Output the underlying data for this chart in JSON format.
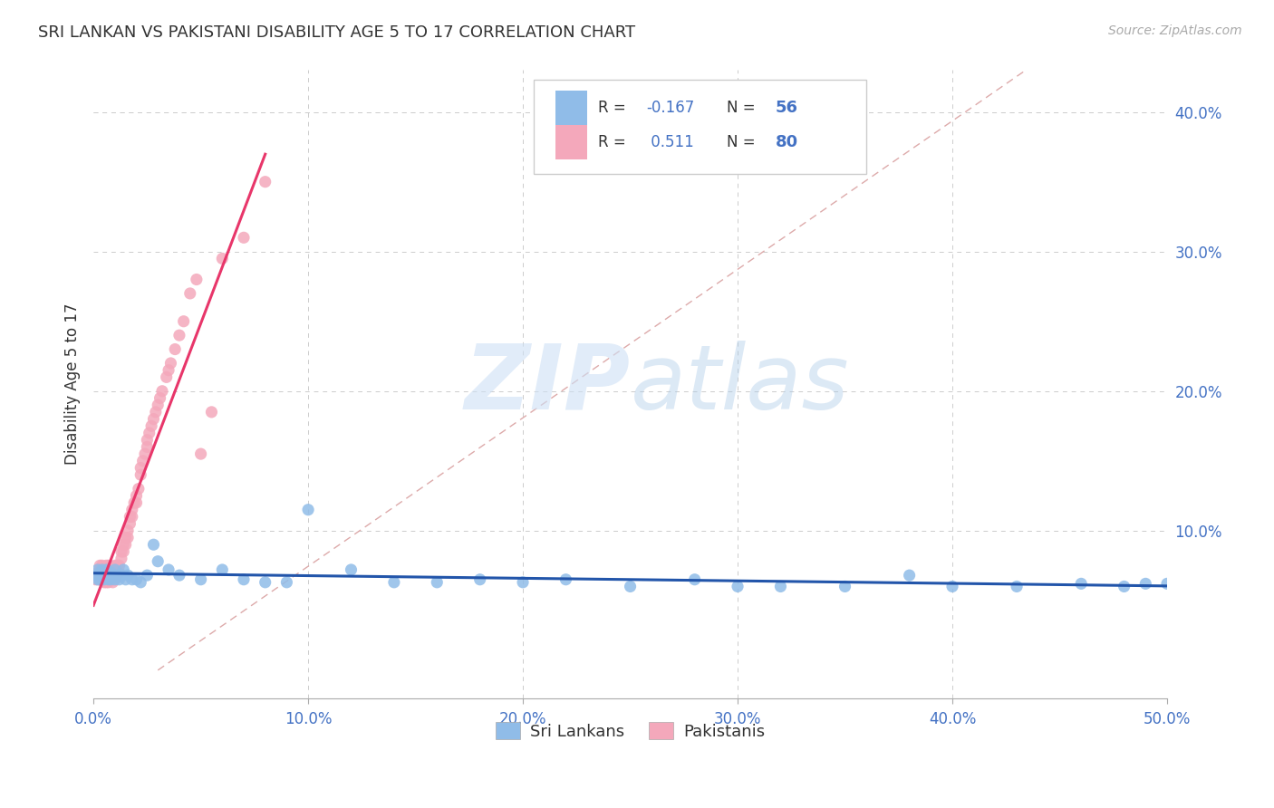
{
  "title": "SRI LANKAN VS PAKISTANI DISABILITY AGE 5 TO 17 CORRELATION CHART",
  "source": "Source: ZipAtlas.com",
  "ylabel": "Disability Age 5 to 17",
  "xlim": [
    0.0,
    0.5
  ],
  "ylim": [
    -0.02,
    0.43
  ],
  "xticks": [
    0.0,
    0.1,
    0.2,
    0.3,
    0.4,
    0.5
  ],
  "xticklabels": [
    "0.0%",
    "10.0%",
    "20.0%",
    "30.0%",
    "40.0%",
    "50.0%"
  ],
  "yticks_right": [
    0.1,
    0.2,
    0.3,
    0.4
  ],
  "yticklabels_right": [
    "10.0%",
    "20.0%",
    "30.0%",
    "40.0%"
  ],
  "sri_lankan_color": "#90bce8",
  "pakistani_color": "#f4a8bb",
  "sri_lankan_R": -0.167,
  "sri_lankan_N": 56,
  "pakistani_R": 0.511,
  "pakistani_N": 80,
  "legend_label_1": "Sri Lankans",
  "legend_label_2": "Pakistanis",
  "background_color": "#ffffff",
  "grid_color": "#cccccc",
  "axis_label_color": "#4472c4",
  "sri_lankan_line_color": "#2255aa",
  "pakistani_line_color": "#e8366a",
  "diagonal_line_color": "#ddaaaa",
  "sri_lankan_x": [
    0.001,
    0.002,
    0.002,
    0.003,
    0.003,
    0.004,
    0.004,
    0.005,
    0.005,
    0.006,
    0.006,
    0.007,
    0.007,
    0.008,
    0.008,
    0.009,
    0.01,
    0.01,
    0.011,
    0.012,
    0.013,
    0.014,
    0.015,
    0.016,
    0.018,
    0.02,
    0.022,
    0.025,
    0.028,
    0.03,
    0.035,
    0.04,
    0.05,
    0.06,
    0.07,
    0.08,
    0.09,
    0.1,
    0.12,
    0.14,
    0.16,
    0.18,
    0.2,
    0.22,
    0.25,
    0.28,
    0.3,
    0.32,
    0.35,
    0.38,
    0.4,
    0.43,
    0.46,
    0.48,
    0.49,
    0.5
  ],
  "sri_lankan_y": [
    0.068,
    0.072,
    0.065,
    0.07,
    0.065,
    0.068,
    0.072,
    0.07,
    0.065,
    0.068,
    0.072,
    0.065,
    0.068,
    0.07,
    0.065,
    0.068,
    0.072,
    0.065,
    0.068,
    0.065,
    0.068,
    0.072,
    0.065,
    0.068,
    0.065,
    0.065,
    0.063,
    0.068,
    0.09,
    0.078,
    0.072,
    0.068,
    0.065,
    0.072,
    0.065,
    0.063,
    0.063,
    0.115,
    0.072,
    0.063,
    0.063,
    0.065,
    0.063,
    0.065,
    0.06,
    0.065,
    0.06,
    0.06,
    0.06,
    0.068,
    0.06,
    0.06,
    0.062,
    0.06,
    0.062,
    0.062
  ],
  "pakistani_x": [
    0.001,
    0.001,
    0.002,
    0.002,
    0.002,
    0.003,
    0.003,
    0.003,
    0.003,
    0.004,
    0.004,
    0.004,
    0.004,
    0.005,
    0.005,
    0.005,
    0.005,
    0.006,
    0.006,
    0.006,
    0.006,
    0.007,
    0.007,
    0.007,
    0.007,
    0.008,
    0.008,
    0.008,
    0.009,
    0.009,
    0.009,
    0.01,
    0.01,
    0.01,
    0.011,
    0.011,
    0.012,
    0.012,
    0.013,
    0.013,
    0.014,
    0.014,
    0.015,
    0.015,
    0.016,
    0.016,
    0.017,
    0.017,
    0.018,
    0.018,
    0.019,
    0.02,
    0.02,
    0.021,
    0.022,
    0.022,
    0.023,
    0.024,
    0.025,
    0.025,
    0.026,
    0.027,
    0.028,
    0.029,
    0.03,
    0.031,
    0.032,
    0.034,
    0.035,
    0.036,
    0.038,
    0.04,
    0.042,
    0.045,
    0.048,
    0.05,
    0.055,
    0.06,
    0.07,
    0.08
  ],
  "pakistani_y": [
    0.068,
    0.065,
    0.07,
    0.065,
    0.068,
    0.065,
    0.068,
    0.072,
    0.075,
    0.065,
    0.068,
    0.072,
    0.075,
    0.063,
    0.065,
    0.068,
    0.072,
    0.063,
    0.065,
    0.07,
    0.075,
    0.063,
    0.065,
    0.07,
    0.075,
    0.065,
    0.068,
    0.072,
    0.063,
    0.068,
    0.072,
    0.065,
    0.07,
    0.075,
    0.068,
    0.075,
    0.07,
    0.075,
    0.08,
    0.085,
    0.085,
    0.09,
    0.09,
    0.095,
    0.095,
    0.1,
    0.105,
    0.11,
    0.11,
    0.115,
    0.12,
    0.12,
    0.125,
    0.13,
    0.14,
    0.145,
    0.15,
    0.155,
    0.16,
    0.165,
    0.17,
    0.175,
    0.18,
    0.185,
    0.19,
    0.195,
    0.2,
    0.21,
    0.215,
    0.22,
    0.23,
    0.24,
    0.25,
    0.27,
    0.28,
    0.155,
    0.185,
    0.295,
    0.31,
    0.35
  ]
}
